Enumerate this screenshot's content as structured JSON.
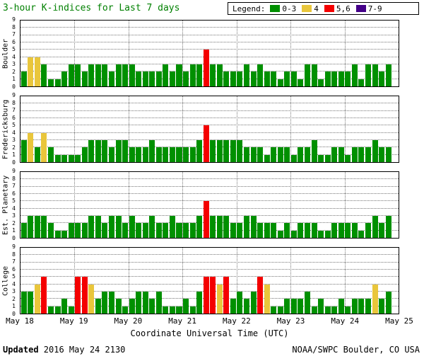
{
  "title": "3-hour K-indices for Last 7 days",
  "legend": {
    "label": "Legend:",
    "items": [
      {
        "label": "0-3",
        "color": "#009000"
      },
      {
        "label": "4",
        "color": "#e9c63b"
      },
      {
        "label": "5,6",
        "color": "#f40000"
      },
      {
        "label": "7-9",
        "color": "#440088"
      }
    ]
  },
  "xaxis": {
    "title": "Coordinate Universal Time (UTC)",
    "ticks": [
      "May 18",
      "May 19",
      "May 20",
      "May 21",
      "May 22",
      "May 23",
      "May 24",
      "May 25"
    ]
  },
  "yaxis": {
    "ticks": [
      "0",
      "1",
      "2",
      "3",
      "4",
      "5",
      "6",
      "7",
      "8",
      "9"
    ]
  },
  "footer": {
    "updated_label": "Updated",
    "updated_value": " 2016 May 24 2130",
    "credit": "NOAA/SWPC Boulder, CO USA"
  },
  "chart_data": {
    "type": "bar",
    "title": "3-hour K-indices for Last 7 days",
    "ylim": [
      0,
      9
    ],
    "days": 7,
    "bars_per_day": 8,
    "slots": 56,
    "grid": "dotted",
    "legend_position": "top-right",
    "x_tick_labels": [
      "May 18",
      "May 19",
      "May 20",
      "May 21",
      "May 22",
      "May 23",
      "May 24",
      "May 25"
    ],
    "y_tick_labels": [
      0,
      1,
      2,
      3,
      4,
      5,
      6,
      7,
      8,
      9
    ],
    "color_scale": {
      "k0_3": "#009000",
      "k4": "#e9c63b",
      "k5_6": "#f40000",
      "k7_9": "#440088"
    },
    "panels": [
      {
        "station": "Boulder",
        "values": [
          2,
          4,
          4,
          3,
          1,
          1,
          2,
          3,
          3,
          2,
          3,
          3,
          3,
          2,
          3,
          3,
          3,
          2,
          2,
          2,
          2,
          3,
          2,
          3,
          2,
          3,
          3,
          5,
          3,
          3,
          2,
          2,
          2,
          3,
          2,
          3,
          2,
          2,
          1,
          2,
          2,
          1,
          3,
          3,
          1,
          2,
          2,
          2,
          2,
          3,
          1,
          3,
          3,
          2,
          3
        ]
      },
      {
        "station": "Fredericksburg",
        "values": [
          3,
          4,
          2,
          4,
          2,
          1,
          1,
          1,
          1,
          2,
          3,
          3,
          3,
          2,
          3,
          3,
          2,
          2,
          2,
          3,
          2,
          2,
          2,
          2,
          2,
          2,
          3,
          5,
          3,
          3,
          3,
          3,
          3,
          2,
          2,
          2,
          1,
          2,
          2,
          2,
          1,
          2,
          2,
          3,
          1,
          1,
          2,
          2,
          1,
          2,
          2,
          2,
          3,
          2,
          2
        ]
      },
      {
        "station": "Est. Planetary",
        "values": [
          2,
          3,
          3,
          3,
          2,
          1,
          1,
          2,
          2,
          2,
          3,
          3,
          2,
          3,
          3,
          2,
          3,
          2,
          2,
          3,
          2,
          2,
          3,
          2,
          2,
          2,
          3,
          5,
          3,
          3,
          3,
          2,
          2,
          3,
          3,
          2,
          2,
          2,
          1,
          2,
          1,
          2,
          2,
          2,
          1,
          1,
          2,
          2,
          2,
          2,
          1,
          2,
          3,
          2,
          3
        ]
      },
      {
        "station": "College",
        "values": [
          3,
          3,
          4,
          5,
          1,
          1,
          2,
          1,
          5,
          5,
          4,
          2,
          3,
          3,
          2,
          1,
          2,
          3,
          3,
          2,
          3,
          1,
          1,
          1,
          2,
          1,
          3,
          5,
          5,
          4,
          5,
          2,
          3,
          2,
          3,
          5,
          4,
          1,
          1,
          2,
          2,
          2,
          3,
          1,
          2,
          1,
          1,
          2,
          1,
          2,
          2,
          2,
          4,
          2,
          3
        ]
      }
    ]
  }
}
